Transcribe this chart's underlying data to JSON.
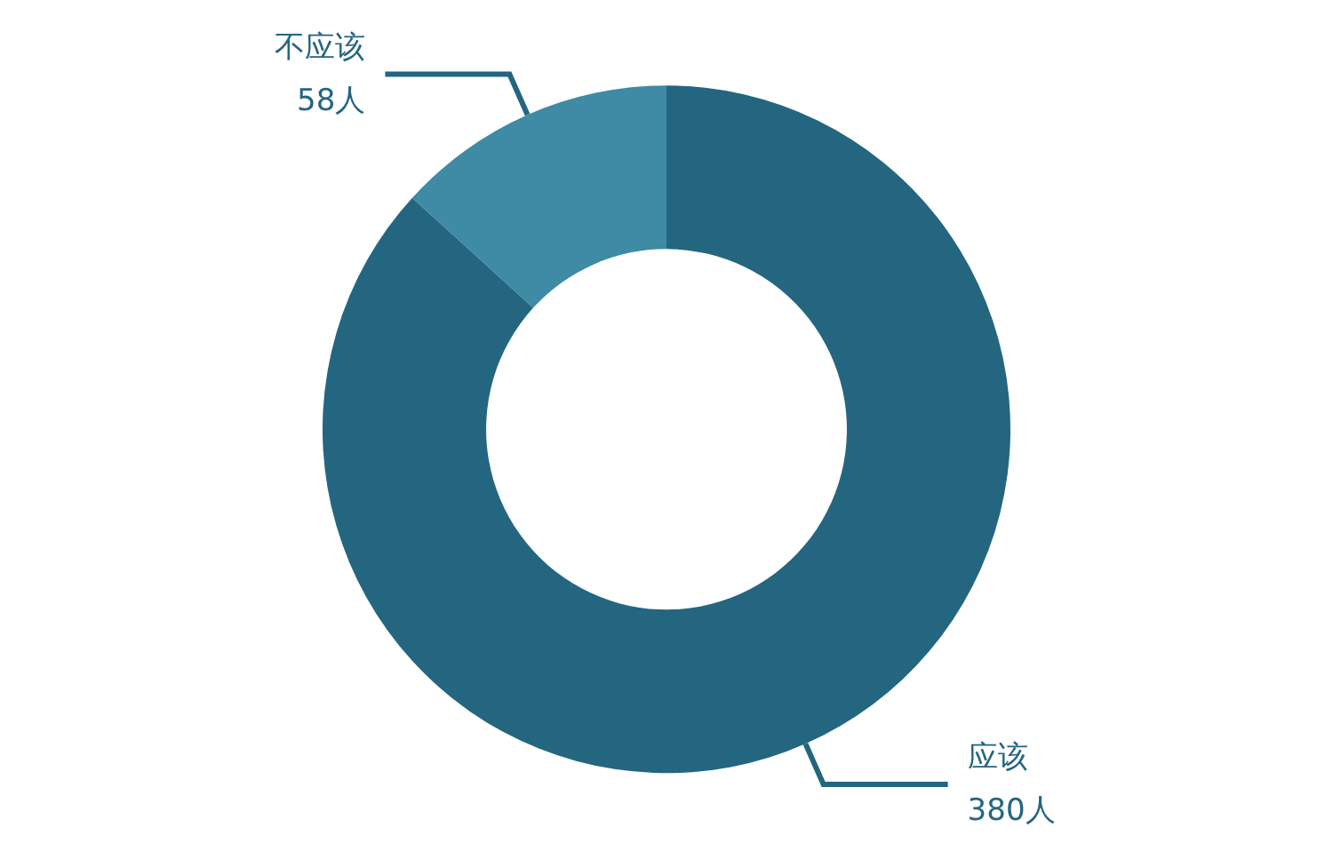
{
  "chart_data": {
    "type": "donut",
    "categories": [
      "应该",
      "不应该"
    ],
    "values": [
      380,
      58
    ],
    "value_labels": [
      "380人",
      "58人"
    ],
    "colors": [
      "#246680",
      "#3f8aa5"
    ],
    "legend": false
  }
}
